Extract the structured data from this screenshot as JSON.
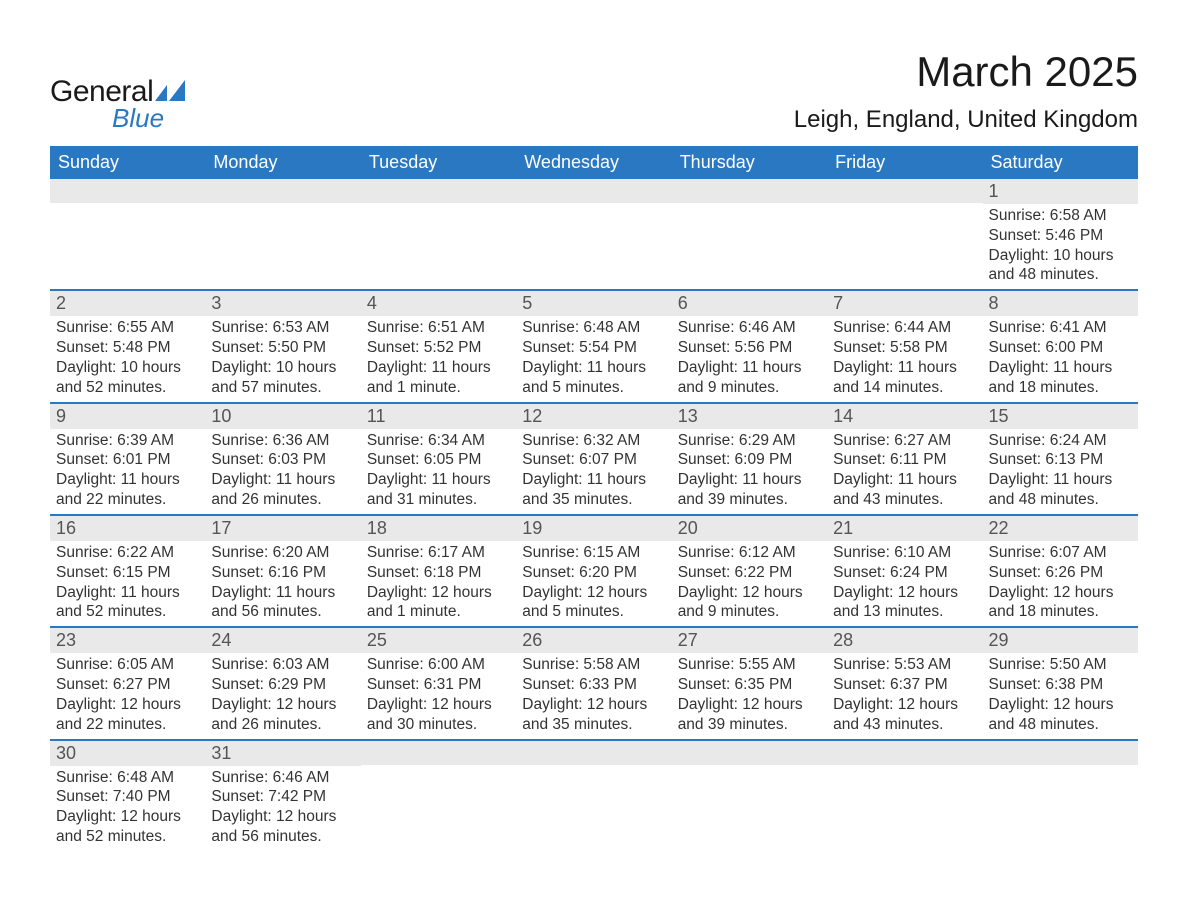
{
  "logo": {
    "text1": "General",
    "text2": "Blue",
    "glyph_color": "#2b78c2"
  },
  "title": "March 2025",
  "location": "Leigh, England, United Kingdom",
  "colors": {
    "header_bg": "#2b78c2",
    "header_fg": "#ffffff",
    "daynum_bg": "#e9e9e9",
    "week_border": "#2b78c2",
    "text": "#333333"
  },
  "day_names": [
    "Sunday",
    "Monday",
    "Tuesday",
    "Wednesday",
    "Thursday",
    "Friday",
    "Saturday"
  ],
  "weeks": [
    [
      {
        "n": "",
        "sr": "",
        "ss": "",
        "dl": ""
      },
      {
        "n": "",
        "sr": "",
        "ss": "",
        "dl": ""
      },
      {
        "n": "",
        "sr": "",
        "ss": "",
        "dl": ""
      },
      {
        "n": "",
        "sr": "",
        "ss": "",
        "dl": ""
      },
      {
        "n": "",
        "sr": "",
        "ss": "",
        "dl": ""
      },
      {
        "n": "",
        "sr": "",
        "ss": "",
        "dl": ""
      },
      {
        "n": "1",
        "sr": "Sunrise: 6:58 AM",
        "ss": "Sunset: 5:46 PM",
        "dl": "Daylight: 10 hours and 48 minutes."
      }
    ],
    [
      {
        "n": "2",
        "sr": "Sunrise: 6:55 AM",
        "ss": "Sunset: 5:48 PM",
        "dl": "Daylight: 10 hours and 52 minutes."
      },
      {
        "n": "3",
        "sr": "Sunrise: 6:53 AM",
        "ss": "Sunset: 5:50 PM",
        "dl": "Daylight: 10 hours and 57 minutes."
      },
      {
        "n": "4",
        "sr": "Sunrise: 6:51 AM",
        "ss": "Sunset: 5:52 PM",
        "dl": "Daylight: 11 hours and 1 minute."
      },
      {
        "n": "5",
        "sr": "Sunrise: 6:48 AM",
        "ss": "Sunset: 5:54 PM",
        "dl": "Daylight: 11 hours and 5 minutes."
      },
      {
        "n": "6",
        "sr": "Sunrise: 6:46 AM",
        "ss": "Sunset: 5:56 PM",
        "dl": "Daylight: 11 hours and 9 minutes."
      },
      {
        "n": "7",
        "sr": "Sunrise: 6:44 AM",
        "ss": "Sunset: 5:58 PM",
        "dl": "Daylight: 11 hours and 14 minutes."
      },
      {
        "n": "8",
        "sr": "Sunrise: 6:41 AM",
        "ss": "Sunset: 6:00 PM",
        "dl": "Daylight: 11 hours and 18 minutes."
      }
    ],
    [
      {
        "n": "9",
        "sr": "Sunrise: 6:39 AM",
        "ss": "Sunset: 6:01 PM",
        "dl": "Daylight: 11 hours and 22 minutes."
      },
      {
        "n": "10",
        "sr": "Sunrise: 6:36 AM",
        "ss": "Sunset: 6:03 PM",
        "dl": "Daylight: 11 hours and 26 minutes."
      },
      {
        "n": "11",
        "sr": "Sunrise: 6:34 AM",
        "ss": "Sunset: 6:05 PM",
        "dl": "Daylight: 11 hours and 31 minutes."
      },
      {
        "n": "12",
        "sr": "Sunrise: 6:32 AM",
        "ss": "Sunset: 6:07 PM",
        "dl": "Daylight: 11 hours and 35 minutes."
      },
      {
        "n": "13",
        "sr": "Sunrise: 6:29 AM",
        "ss": "Sunset: 6:09 PM",
        "dl": "Daylight: 11 hours and 39 minutes."
      },
      {
        "n": "14",
        "sr": "Sunrise: 6:27 AM",
        "ss": "Sunset: 6:11 PM",
        "dl": "Daylight: 11 hours and 43 minutes."
      },
      {
        "n": "15",
        "sr": "Sunrise: 6:24 AM",
        "ss": "Sunset: 6:13 PM",
        "dl": "Daylight: 11 hours and 48 minutes."
      }
    ],
    [
      {
        "n": "16",
        "sr": "Sunrise: 6:22 AM",
        "ss": "Sunset: 6:15 PM",
        "dl": "Daylight: 11 hours and 52 minutes."
      },
      {
        "n": "17",
        "sr": "Sunrise: 6:20 AM",
        "ss": "Sunset: 6:16 PM",
        "dl": "Daylight: 11 hours and 56 minutes."
      },
      {
        "n": "18",
        "sr": "Sunrise: 6:17 AM",
        "ss": "Sunset: 6:18 PM",
        "dl": "Daylight: 12 hours and 1 minute."
      },
      {
        "n": "19",
        "sr": "Sunrise: 6:15 AM",
        "ss": "Sunset: 6:20 PM",
        "dl": "Daylight: 12 hours and 5 minutes."
      },
      {
        "n": "20",
        "sr": "Sunrise: 6:12 AM",
        "ss": "Sunset: 6:22 PM",
        "dl": "Daylight: 12 hours and 9 minutes."
      },
      {
        "n": "21",
        "sr": "Sunrise: 6:10 AM",
        "ss": "Sunset: 6:24 PM",
        "dl": "Daylight: 12 hours and 13 minutes."
      },
      {
        "n": "22",
        "sr": "Sunrise: 6:07 AM",
        "ss": "Sunset: 6:26 PM",
        "dl": "Daylight: 12 hours and 18 minutes."
      }
    ],
    [
      {
        "n": "23",
        "sr": "Sunrise: 6:05 AM",
        "ss": "Sunset: 6:27 PM",
        "dl": "Daylight: 12 hours and 22 minutes."
      },
      {
        "n": "24",
        "sr": "Sunrise: 6:03 AM",
        "ss": "Sunset: 6:29 PM",
        "dl": "Daylight: 12 hours and 26 minutes."
      },
      {
        "n": "25",
        "sr": "Sunrise: 6:00 AM",
        "ss": "Sunset: 6:31 PM",
        "dl": "Daylight: 12 hours and 30 minutes."
      },
      {
        "n": "26",
        "sr": "Sunrise: 5:58 AM",
        "ss": "Sunset: 6:33 PM",
        "dl": "Daylight: 12 hours and 35 minutes."
      },
      {
        "n": "27",
        "sr": "Sunrise: 5:55 AM",
        "ss": "Sunset: 6:35 PM",
        "dl": "Daylight: 12 hours and 39 minutes."
      },
      {
        "n": "28",
        "sr": "Sunrise: 5:53 AM",
        "ss": "Sunset: 6:37 PM",
        "dl": "Daylight: 12 hours and 43 minutes."
      },
      {
        "n": "29",
        "sr": "Sunrise: 5:50 AM",
        "ss": "Sunset: 6:38 PM",
        "dl": "Daylight: 12 hours and 48 minutes."
      }
    ],
    [
      {
        "n": "30",
        "sr": "Sunrise: 6:48 AM",
        "ss": "Sunset: 7:40 PM",
        "dl": "Daylight: 12 hours and 52 minutes."
      },
      {
        "n": "31",
        "sr": "Sunrise: 6:46 AM",
        "ss": "Sunset: 7:42 PM",
        "dl": "Daylight: 12 hours and 56 minutes."
      },
      {
        "n": "",
        "sr": "",
        "ss": "",
        "dl": ""
      },
      {
        "n": "",
        "sr": "",
        "ss": "",
        "dl": ""
      },
      {
        "n": "",
        "sr": "",
        "ss": "",
        "dl": ""
      },
      {
        "n": "",
        "sr": "",
        "ss": "",
        "dl": ""
      },
      {
        "n": "",
        "sr": "",
        "ss": "",
        "dl": ""
      }
    ]
  ]
}
